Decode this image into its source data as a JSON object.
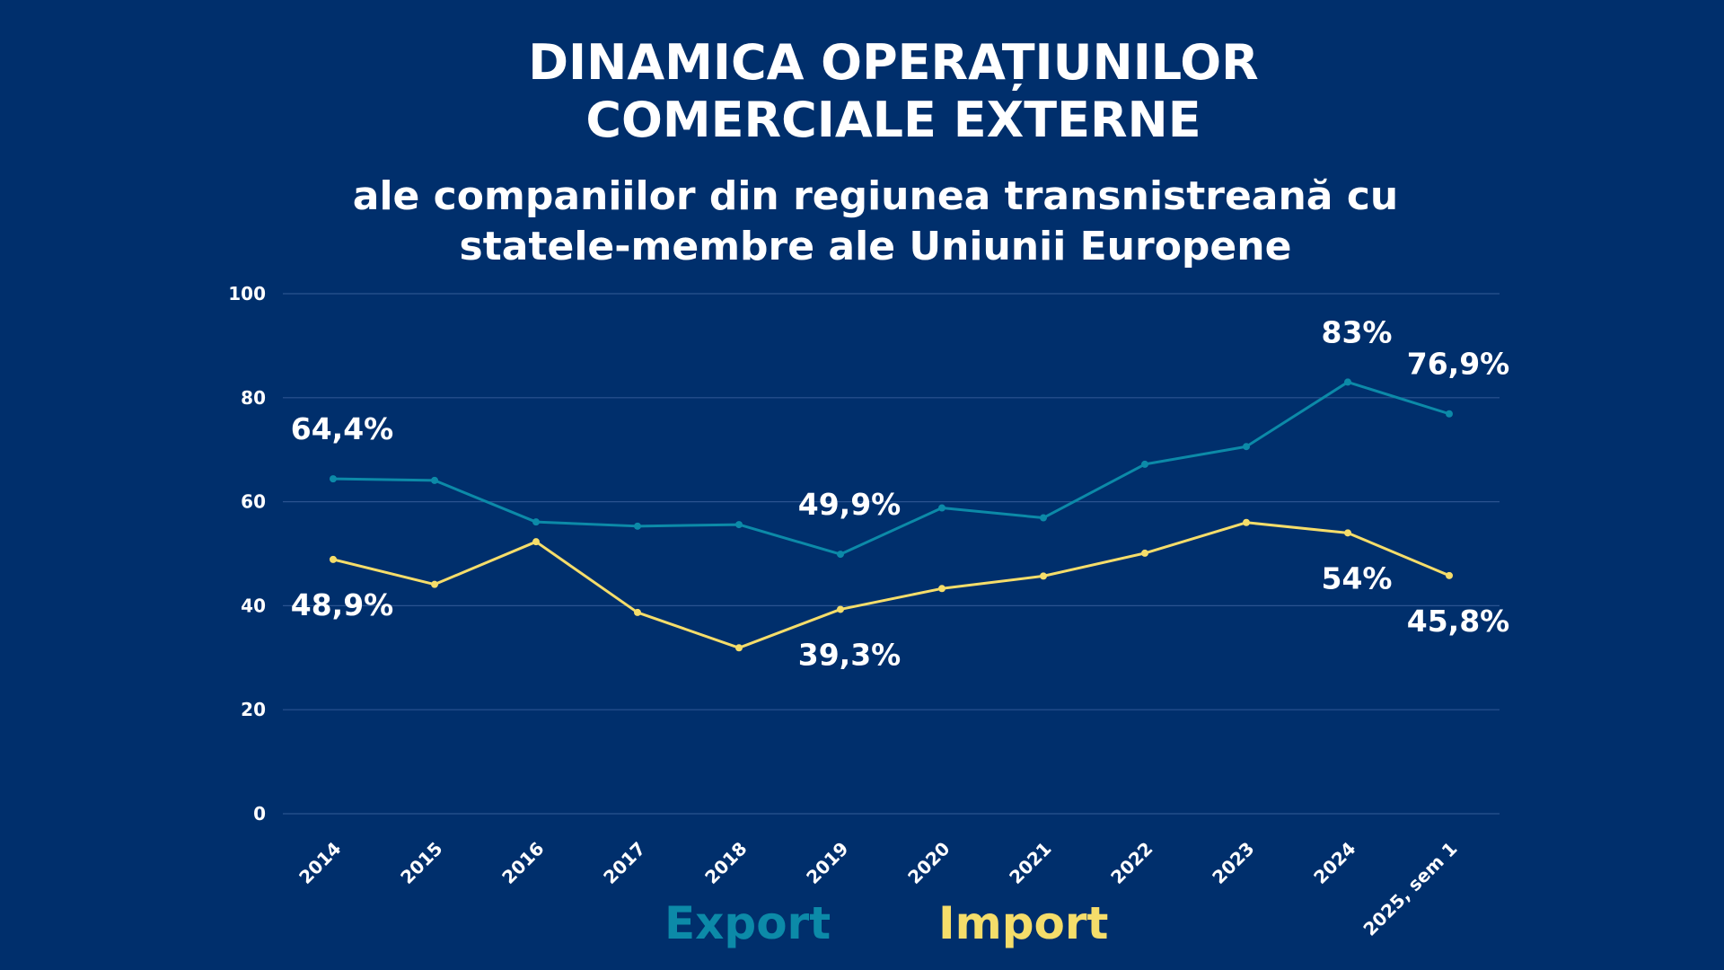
{
  "title_lines": [
    "DINAMICA OPERAȚIUNILOR",
    "COMERCIALE EXTERNE"
  ],
  "subtitle_lines": [
    "ale companiilor din regiunea transnistreană cu",
    "statele-membre ale Uniunii Europene"
  ],
  "colors": {
    "background": "#002f6c",
    "export": "#0c8aa8",
    "import": "#f5dd6a",
    "grid": "#2a5390"
  },
  "chart_data": {
    "type": "line",
    "categories": [
      "2014",
      "2015",
      "2016",
      "2017",
      "2018",
      "2019",
      "2020",
      "2021",
      "2022",
      "2023",
      "2024",
      "2025, sem 1"
    ],
    "series": [
      {
        "name": "Export",
        "values": [
          64.4,
          64.1,
          56.1,
          55.3,
          55.6,
          49.9,
          58.8,
          56.9,
          67.2,
          70.6,
          83.0,
          76.9
        ]
      },
      {
        "name": "Import",
        "values": [
          48.9,
          44.1,
          52.3,
          38.7,
          31.9,
          39.3,
          43.3,
          45.7,
          50.1,
          56.0,
          54.0,
          45.8
        ]
      }
    ],
    "ylim": [
      0,
      100
    ],
    "yticks": [
      0,
      20,
      40,
      60,
      80,
      100
    ],
    "grid": true,
    "legend_position": "bottom",
    "annotations": [
      {
        "series": 0,
        "index": 0,
        "text": "64,4%",
        "place": "above"
      },
      {
        "series": 0,
        "index": 5,
        "text": "49,9%",
        "place": "above"
      },
      {
        "series": 0,
        "index": 10,
        "text": "83%",
        "place": "above"
      },
      {
        "series": 0,
        "index": 11,
        "text": "76,9%",
        "place": "above"
      },
      {
        "series": 1,
        "index": 0,
        "text": "48,9%",
        "place": "below"
      },
      {
        "series": 1,
        "index": 5,
        "text": "39,3%",
        "place": "below"
      },
      {
        "series": 1,
        "index": 10,
        "text": "54%",
        "place": "below"
      },
      {
        "series": 1,
        "index": 11,
        "text": "45,8%",
        "place": "below"
      }
    ]
  }
}
